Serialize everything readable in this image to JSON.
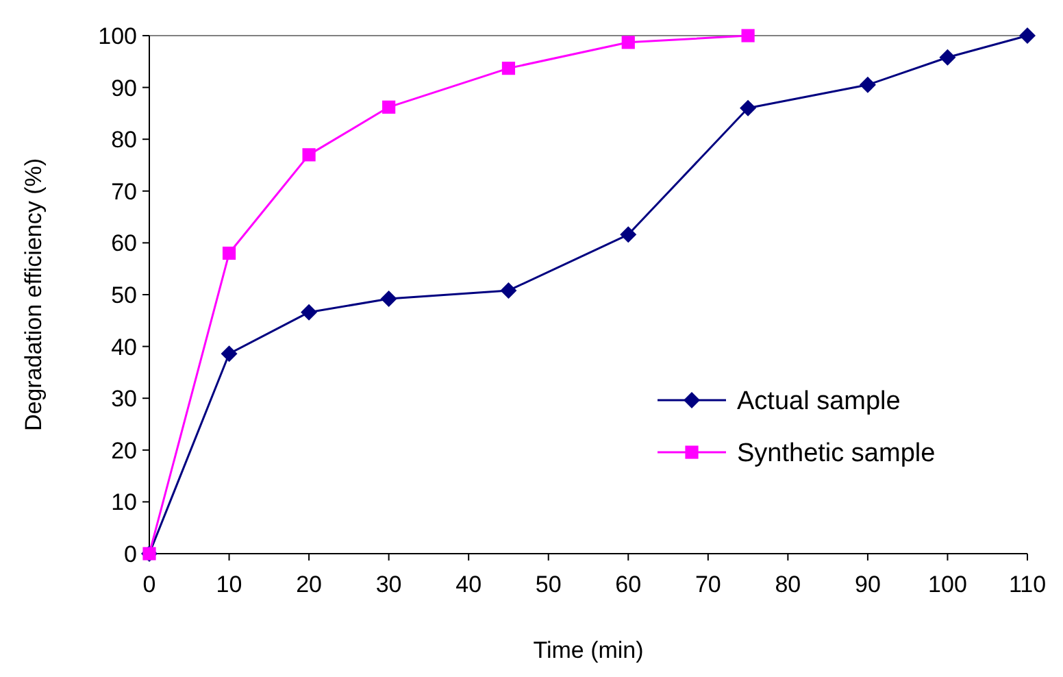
{
  "chart_data": {
    "type": "line",
    "xlabel": "Time (min)",
    "ylabel": "Degradation efficiency (%)",
    "xlim": [
      0,
      110
    ],
    "xticks": [
      0,
      10,
      20,
      30,
      40,
      50,
      60,
      70,
      80,
      90,
      100,
      110
    ],
    "ylim": [
      0,
      100
    ],
    "yticks": [
      0,
      10,
      20,
      30,
      40,
      50,
      60,
      70,
      80,
      90,
      100
    ],
    "grid": false,
    "legend": "bottom right",
    "series": [
      {
        "name": "Actual sample",
        "color": "#000080",
        "marker": "diamond",
        "x": [
          0,
          10,
          20,
          30,
          45,
          60,
          75,
          90,
          100,
          110
        ],
        "values": [
          0,
          38.6,
          46.6,
          49.2,
          50.8,
          61.6,
          86,
          90.5,
          95.8,
          100
        ]
      },
      {
        "name": "Synthetic sample",
        "color": "#ff00ff",
        "marker": "square",
        "x": [
          0,
          10,
          20,
          30,
          45,
          60,
          75
        ],
        "values": [
          0,
          58,
          77,
          86.2,
          93.7,
          98.7,
          100
        ]
      }
    ]
  }
}
